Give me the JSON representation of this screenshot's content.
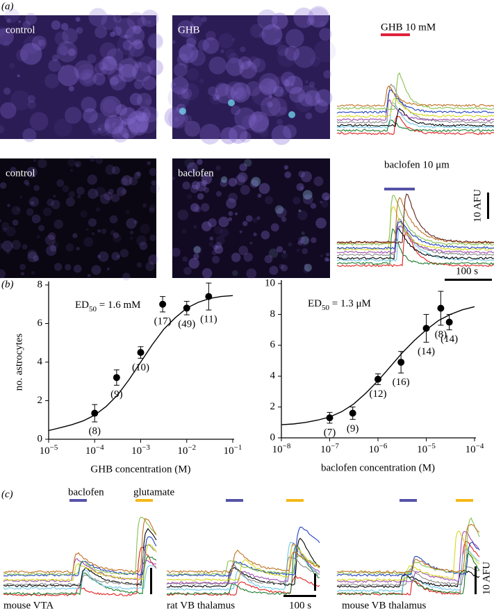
{
  "panel_a": {
    "label": "(a)",
    "images": [
      "control",
      "GHB",
      "control",
      "baclofen"
    ],
    "stimuli": [
      "GHB 10 mM",
      "baclofen 10 μm"
    ],
    "scale_y": "10 AFU",
    "scale_x": "100 s"
  },
  "panel_b": {
    "label": "(b)"
  },
  "panel_c": {
    "label": "(c)",
    "stimuli": [
      "baclofen",
      "glutamate"
    ],
    "regions": [
      "mouse VTA",
      "rat VB thalamus",
      "mouse VB thalamus"
    ],
    "scale_x": "100 s",
    "scale_y": "10 AFU"
  },
  "chart_data": [
    {
      "type": "scatter",
      "annotation": "ED50 = 1.6 mM",
      "x_label": "GHB concentration (M)",
      "y_label": "no. astrocytes",
      "x": [
        0.0001,
        0.0003,
        0.001,
        0.003,
        0.01,
        0.03
      ],
      "values": [
        1.35,
        3.2,
        4.5,
        7.0,
        6.8,
        7.4
      ],
      "errors": [
        0.45,
        0.4,
        0.3,
        0.4,
        0.35,
        0.7
      ],
      "point_labels": [
        "(8)",
        "(9)",
        "(10)",
        "(17)",
        "(49)",
        "(11)"
      ],
      "fit_x": [
        1e-05,
        1.78e-05,
        3.16e-05,
        5.62e-05,
        0.0001,
        0.000178,
        0.000316,
        0.000562,
        0.001,
        0.00178,
        0.00316,
        0.00562,
        0.01,
        0.0178,
        0.0316,
        0.0562,
        0.1
      ],
      "fit_values": [
        0.45,
        0.6,
        0.75,
        0.95,
        1.25,
        1.7,
        2.3,
        3.1,
        4.0,
        4.9,
        5.7,
        6.3,
        6.8,
        7.1,
        7.3,
        7.4,
        7.45
      ],
      "xscale": "log",
      "xlim": [
        1e-05,
        0.1
      ],
      "ylim": [
        0,
        8
      ],
      "color": "#000000",
      "xticks": [
        {
          "value": 1e-05,
          "label": "10−5"
        },
        {
          "value": 0.0001,
          "label": "10−4"
        },
        {
          "value": 0.001,
          "label": "10−3"
        },
        {
          "value": 0.01,
          "label": "10−2"
        },
        {
          "value": 0.1,
          "label": "10−1"
        }
      ],
      "yticks": [
        0,
        2,
        4,
        6,
        8
      ]
    },
    {
      "type": "scatter",
      "annotation": "ED50 = 1.3 μM",
      "x_label": "baclofen concentration (M)",
      "x": [
        1e-07,
        3e-07,
        1e-06,
        3e-06,
        1e-05,
        2e-05,
        3e-05
      ],
      "values": [
        1.3,
        1.6,
        3.8,
        4.9,
        7.1,
        8.4,
        7.5
      ],
      "errors": [
        0.35,
        0.4,
        0.35,
        0.7,
        0.9,
        1.1,
        0.5
      ],
      "point_labels": [
        "(7)",
        "(9)",
        "(12)",
        "(16)",
        "(14)",
        "(8)",
        "(14)"
      ],
      "fit_x": [
        1e-08,
        1.78e-08,
        3.16e-08,
        5.62e-08,
        1e-07,
        1.78e-07,
        3.16e-07,
        5.62e-07,
        1e-06,
        1.78e-06,
        3.16e-06,
        5.62e-06,
        1e-05,
        1.78e-05,
        3.16e-05,
        5.62e-05,
        0.0001
      ],
      "fit_values": [
        0.85,
        0.9,
        1.0,
        1.15,
        1.35,
        1.7,
        2.2,
        2.9,
        3.7,
        4.6,
        5.5,
        6.3,
        7.0,
        7.6,
        8.0,
        8.3,
        8.5
      ],
      "xscale": "log",
      "xlim": [
        1e-08,
        0.0001
      ],
      "ylim": [
        0,
        10
      ],
      "color": "#000000",
      "xticks": [
        {
          "value": 1e-08,
          "label": "10−8"
        },
        {
          "value": 1e-07,
          "label": "10−7"
        },
        {
          "value": 1e-06,
          "label": "10−6"
        },
        {
          "value": 1e-05,
          "label": "10−5"
        },
        {
          "value": 0.0001,
          "label": "10−4"
        }
      ],
      "yticks": [
        0,
        2,
        4,
        6,
        8,
        10
      ]
    }
  ]
}
